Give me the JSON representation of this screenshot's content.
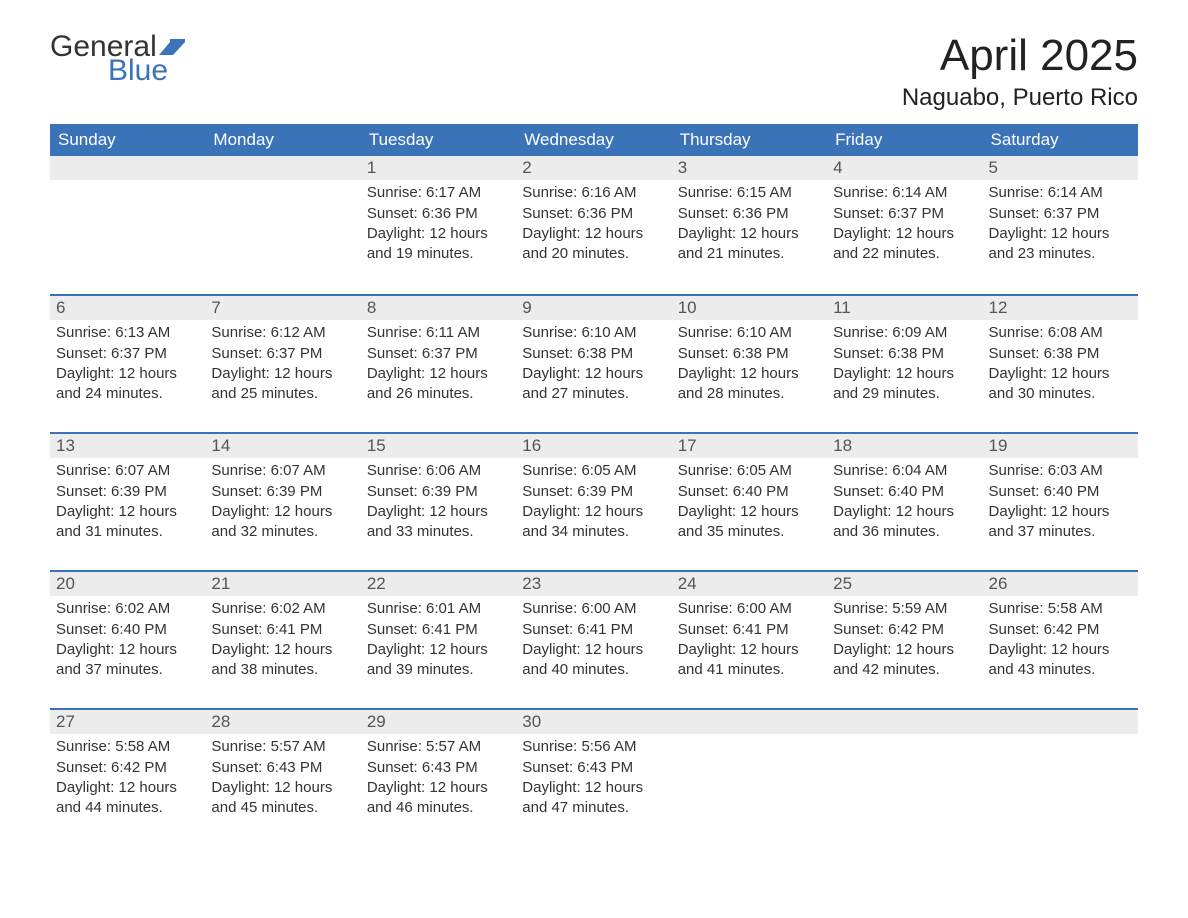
{
  "brand": {
    "text_general": "General",
    "text_blue": "Blue",
    "general_color": "#333333",
    "blue_color": "#3b73b9",
    "flag_color": "#3b73b9"
  },
  "title": "April 2025",
  "location": "Naguabo, Puerto Rico",
  "colors": {
    "header_bg": "#3b73b9",
    "header_text": "#ffffff",
    "daynum_bg": "#ececec",
    "daynum_border": "#3b73b9",
    "body_text": "#333333",
    "background": "#ffffff"
  },
  "typography": {
    "title_fontsize": 44,
    "location_fontsize": 24,
    "weekday_fontsize": 17,
    "daynum_fontsize": 17,
    "body_fontsize": 15,
    "font_family": "Segoe UI"
  },
  "layout": {
    "columns": 7,
    "rows": 5,
    "first_day_column_index": 2,
    "days_in_month": 30
  },
  "weekday_headers": [
    "Sunday",
    "Monday",
    "Tuesday",
    "Wednesday",
    "Thursday",
    "Friday",
    "Saturday"
  ],
  "days": [
    {
      "n": 1,
      "sunrise": "6:17 AM",
      "sunset": "6:36 PM",
      "daylight": "12 hours and 19 minutes."
    },
    {
      "n": 2,
      "sunrise": "6:16 AM",
      "sunset": "6:36 PM",
      "daylight": "12 hours and 20 minutes."
    },
    {
      "n": 3,
      "sunrise": "6:15 AM",
      "sunset": "6:36 PM",
      "daylight": "12 hours and 21 minutes."
    },
    {
      "n": 4,
      "sunrise": "6:14 AM",
      "sunset": "6:37 PM",
      "daylight": "12 hours and 22 minutes."
    },
    {
      "n": 5,
      "sunrise": "6:14 AM",
      "sunset": "6:37 PM",
      "daylight": "12 hours and 23 minutes."
    },
    {
      "n": 6,
      "sunrise": "6:13 AM",
      "sunset": "6:37 PM",
      "daylight": "12 hours and 24 minutes."
    },
    {
      "n": 7,
      "sunrise": "6:12 AM",
      "sunset": "6:37 PM",
      "daylight": "12 hours and 25 minutes."
    },
    {
      "n": 8,
      "sunrise": "6:11 AM",
      "sunset": "6:37 PM",
      "daylight": "12 hours and 26 minutes."
    },
    {
      "n": 9,
      "sunrise": "6:10 AM",
      "sunset": "6:38 PM",
      "daylight": "12 hours and 27 minutes."
    },
    {
      "n": 10,
      "sunrise": "6:10 AM",
      "sunset": "6:38 PM",
      "daylight": "12 hours and 28 minutes."
    },
    {
      "n": 11,
      "sunrise": "6:09 AM",
      "sunset": "6:38 PM",
      "daylight": "12 hours and 29 minutes."
    },
    {
      "n": 12,
      "sunrise": "6:08 AM",
      "sunset": "6:38 PM",
      "daylight": "12 hours and 30 minutes."
    },
    {
      "n": 13,
      "sunrise": "6:07 AM",
      "sunset": "6:39 PM",
      "daylight": "12 hours and 31 minutes."
    },
    {
      "n": 14,
      "sunrise": "6:07 AM",
      "sunset": "6:39 PM",
      "daylight": "12 hours and 32 minutes."
    },
    {
      "n": 15,
      "sunrise": "6:06 AM",
      "sunset": "6:39 PM",
      "daylight": "12 hours and 33 minutes."
    },
    {
      "n": 16,
      "sunrise": "6:05 AM",
      "sunset": "6:39 PM",
      "daylight": "12 hours and 34 minutes."
    },
    {
      "n": 17,
      "sunrise": "6:05 AM",
      "sunset": "6:40 PM",
      "daylight": "12 hours and 35 minutes."
    },
    {
      "n": 18,
      "sunrise": "6:04 AM",
      "sunset": "6:40 PM",
      "daylight": "12 hours and 36 minutes."
    },
    {
      "n": 19,
      "sunrise": "6:03 AM",
      "sunset": "6:40 PM",
      "daylight": "12 hours and 37 minutes."
    },
    {
      "n": 20,
      "sunrise": "6:02 AM",
      "sunset": "6:40 PM",
      "daylight": "12 hours and 37 minutes."
    },
    {
      "n": 21,
      "sunrise": "6:02 AM",
      "sunset": "6:41 PM",
      "daylight": "12 hours and 38 minutes."
    },
    {
      "n": 22,
      "sunrise": "6:01 AM",
      "sunset": "6:41 PM",
      "daylight": "12 hours and 39 minutes."
    },
    {
      "n": 23,
      "sunrise": "6:00 AM",
      "sunset": "6:41 PM",
      "daylight": "12 hours and 40 minutes."
    },
    {
      "n": 24,
      "sunrise": "6:00 AM",
      "sunset": "6:41 PM",
      "daylight": "12 hours and 41 minutes."
    },
    {
      "n": 25,
      "sunrise": "5:59 AM",
      "sunset": "6:42 PM",
      "daylight": "12 hours and 42 minutes."
    },
    {
      "n": 26,
      "sunrise": "5:58 AM",
      "sunset": "6:42 PM",
      "daylight": "12 hours and 43 minutes."
    },
    {
      "n": 27,
      "sunrise": "5:58 AM",
      "sunset": "6:42 PM",
      "daylight": "12 hours and 44 minutes."
    },
    {
      "n": 28,
      "sunrise": "5:57 AM",
      "sunset": "6:43 PM",
      "daylight": "12 hours and 45 minutes."
    },
    {
      "n": 29,
      "sunrise": "5:57 AM",
      "sunset": "6:43 PM",
      "daylight": "12 hours and 46 minutes."
    },
    {
      "n": 30,
      "sunrise": "5:56 AM",
      "sunset": "6:43 PM",
      "daylight": "12 hours and 47 minutes."
    }
  ],
  "labels": {
    "sunrise": "Sunrise:",
    "sunset": "Sunset:",
    "daylight": "Daylight:"
  }
}
